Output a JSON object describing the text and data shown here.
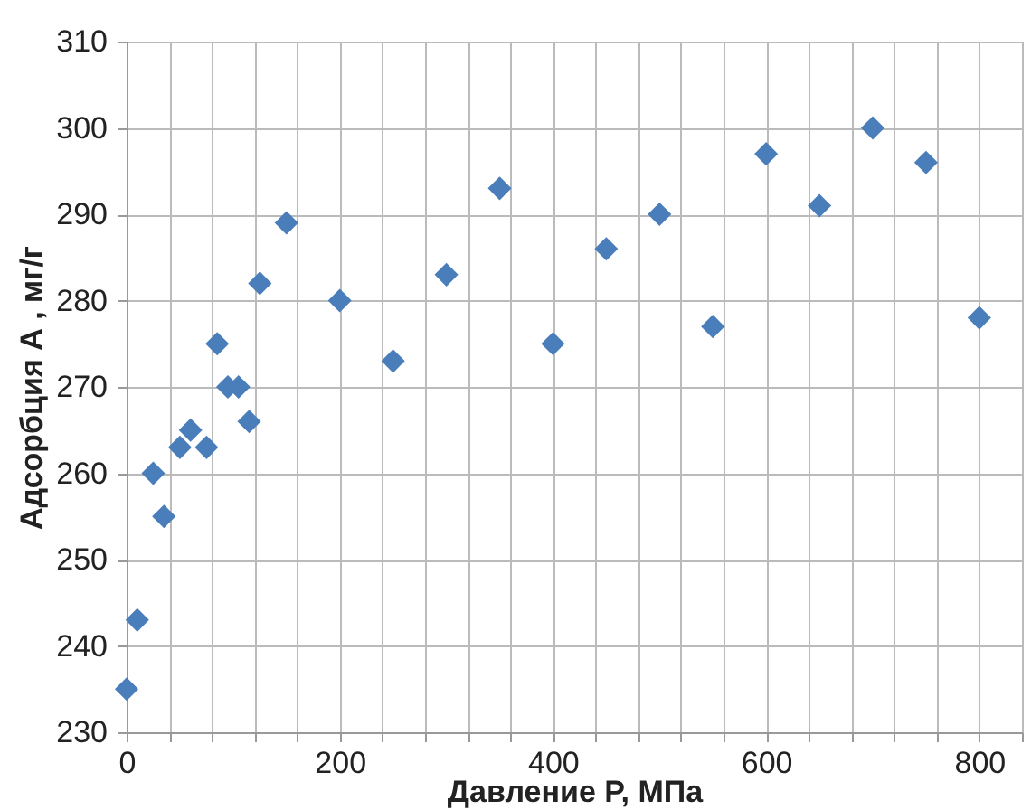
{
  "chart_data": {
    "type": "scatter",
    "xlabel": "Давление P, МПа",
    "ylabel": "Адсорбция А , мг/г",
    "x": [
      0,
      10,
      25,
      35,
      50,
      60,
      75,
      85,
      95,
      105,
      115,
      125,
      150,
      200,
      250,
      300,
      350,
      400,
      450,
      500,
      550,
      600,
      650,
      700,
      750,
      800
    ],
    "series": [
      {
        "color": "#4a7ebb",
        "values": [
          235,
          243,
          260,
          255,
          263,
          265,
          263,
          275,
          270,
          270,
          266,
          282,
          289,
          280,
          273,
          283,
          293,
          275,
          286,
          290,
          277,
          297,
          291,
          300,
          296,
          278
        ]
      }
    ],
    "marker": "diamond",
    "grid": true,
    "xlim": [
      0,
      840
    ],
    "xticks": [
      0,
      {
        "value": 40,
        "label": null
      },
      {
        "value": 80,
        "label": null
      },
      {
        "value": 120,
        "label": null
      },
      {
        "value": 160,
        "label": null
      },
      200,
      {
        "value": 240,
        "label": null
      },
      {
        "value": 280,
        "label": null
      },
      {
        "value": 320,
        "label": null
      },
      {
        "value": 360,
        "label": null
      },
      400,
      {
        "value": 440,
        "label": null
      },
      {
        "value": 480,
        "label": null
      },
      {
        "value": 520,
        "label": null
      },
      {
        "value": 560,
        "label": null
      },
      600,
      {
        "value": 640,
        "label": null
      },
      {
        "value": 680,
        "label": null
      },
      {
        "value": 720,
        "label": null
      },
      {
        "value": 760,
        "label": null
      },
      800,
      {
        "value": 840,
        "label": null
      }
    ],
    "ylim": [
      230,
      310
    ],
    "yticks": [
      230,
      240,
      250,
      260,
      270,
      280,
      290,
      300,
      310
    ]
  }
}
